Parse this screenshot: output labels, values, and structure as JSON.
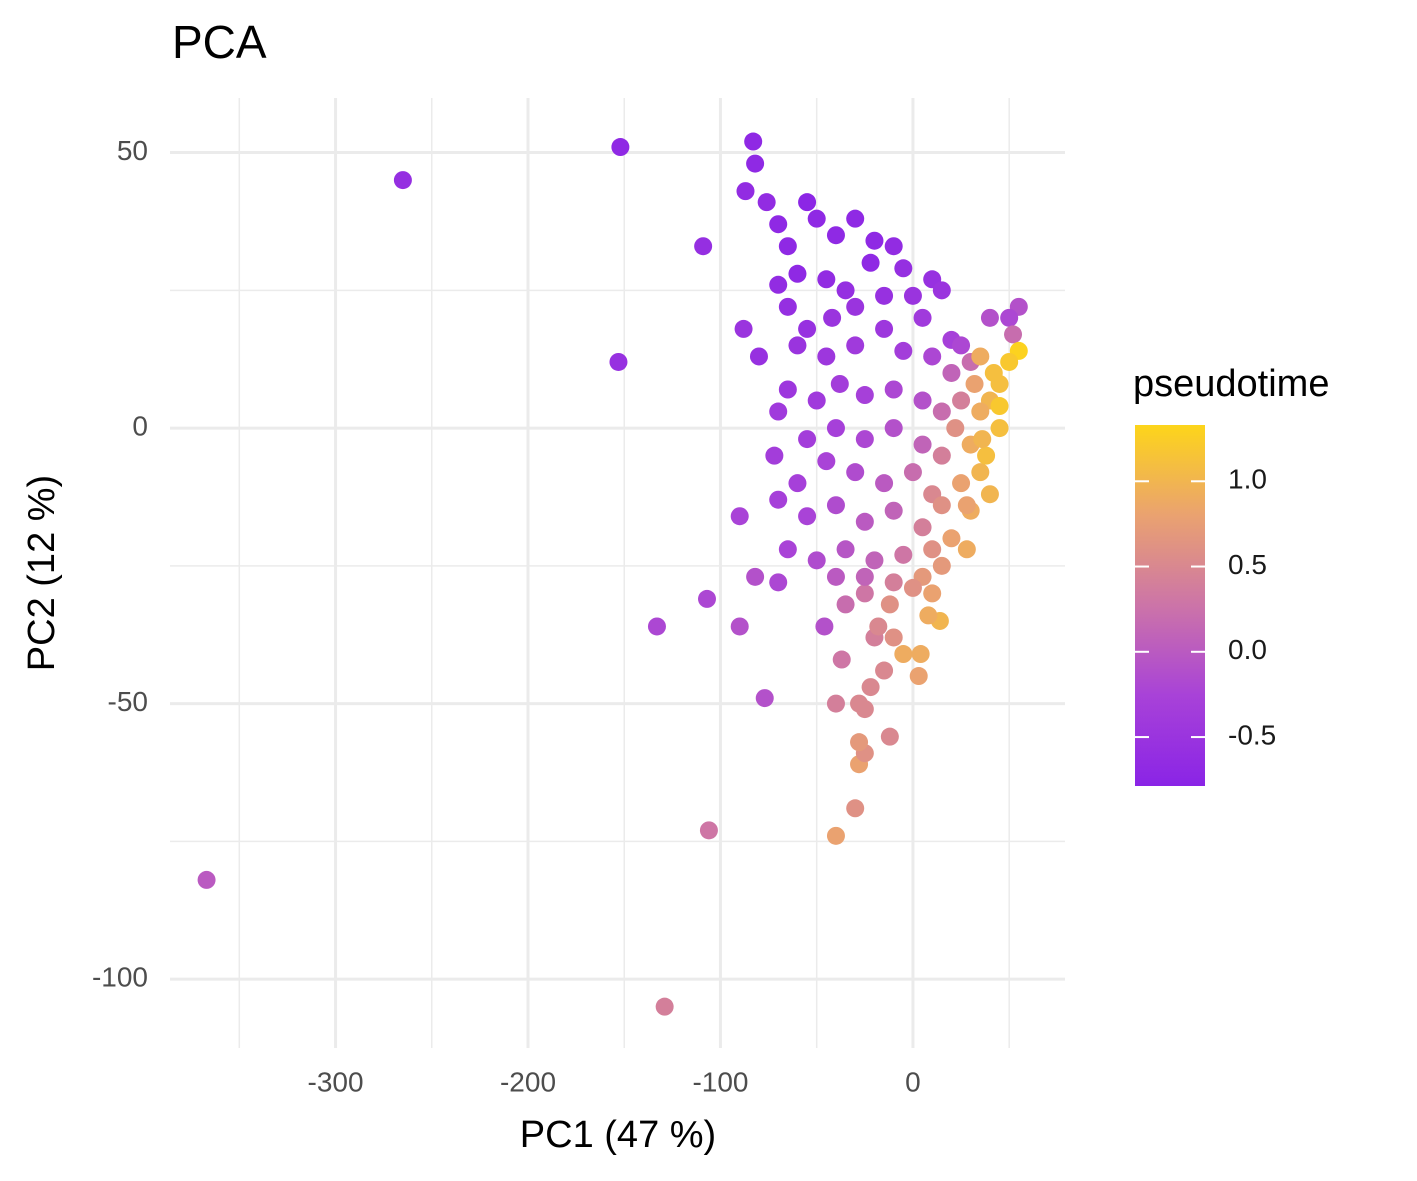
{
  "chart_data": {
    "type": "scatter",
    "title": "PCA",
    "x_label": "PC1 (47 %)",
    "y_label": "PC2 (12 %)",
    "color_label": "pseudotime",
    "xlim": [
      -386,
      79
    ],
    "ylim": [
      -112.5,
      59.9
    ],
    "xticks": [
      -300,
      -200,
      -100,
      0
    ],
    "yticks": [
      -100,
      -50,
      0,
      50
    ],
    "grid": true,
    "clim": [
      -0.787,
      1.33
    ],
    "cticks": [
      -0.5,
      {
        "value": 0,
        "label": "0.0"
      },
      0.5,
      {
        "value": 1,
        "label": "1.0"
      }
    ],
    "colorscale": [
      "#8a24e6",
      "#a842d8",
      "#cc74a8",
      "#eaa270",
      "#fdd51a"
    ],
    "x": [
      -367,
      -265,
      -152,
      -153,
      -109,
      -83,
      -82,
      -87,
      -76,
      -88,
      -80,
      -133,
      -107,
      -90,
      -90,
      -82,
      -77,
      -106,
      -129,
      -70,
      -46,
      -40,
      -30,
      -28,
      -25,
      -28,
      -12,
      -40,
      -28,
      -25,
      -37,
      -22,
      -15,
      3,
      4,
      -5,
      -20,
      -10,
      14,
      8,
      -35,
      -25,
      -12,
      -18,
      55,
      50,
      40,
      52,
      55,
      50,
      45,
      40,
      35,
      45,
      30,
      35,
      25,
      40,
      30,
      20,
      28,
      15,
      5,
      -70,
      -65,
      -55,
      -50,
      -40,
      -30,
      -20,
      -10,
      -60,
      -45,
      -35,
      -22,
      -5,
      10,
      15,
      -70,
      -65,
      -55,
      -42,
      -30,
      -15,
      0,
      5,
      20,
      25,
      -60,
      -45,
      -30,
      -15,
      -5,
      10,
      20,
      30,
      -65,
      -50,
      -38,
      -25,
      -10,
      5,
      15,
      25,
      -70,
      -55,
      -40,
      -25,
      -10,
      5,
      15,
      22,
      -72,
      -60,
      -45,
      -30,
      -15,
      0,
      10,
      -70,
      -55,
      -40,
      -25,
      -10,
      5,
      15,
      -65,
      -50,
      -35,
      -20,
      -5,
      10,
      -40,
      -25,
      -10,
      0,
      10,
      35,
      42,
      38,
      45,
      32,
      28,
      36
    ],
    "y": [
      -82,
      45,
      51,
      12,
      33,
      52,
      48,
      43,
      41,
      18,
      13,
      -36,
      -31,
      -36,
      -16,
      -27,
      -49,
      -73,
      -105,
      -28,
      -36,
      -74,
      -69,
      -61,
      -59,
      -57,
      -56,
      -50,
      -50,
      -51,
      -42,
      -47,
      -44,
      -45,
      -41,
      -41,
      -38,
      -38,
      -35,
      -34,
      -32,
      -30,
      -32,
      -36,
      22,
      20,
      20,
      17,
      14,
      12,
      8,
      5,
      3,
      0,
      -3,
      -8,
      -10,
      -12,
      -15,
      -20,
      -22,
      -25,
      -27,
      37,
      33,
      41,
      38,
      35,
      38,
      34,
      33,
      28,
      27,
      25,
      30,
      29,
      27,
      25,
      26,
      22,
      18,
      20,
      22,
      24,
      24,
      20,
      16,
      15,
      15,
      13,
      15,
      18,
      14,
      13,
      10,
      12,
      7,
      5,
      8,
      6,
      7,
      5,
      3,
      5,
      3,
      -2,
      0,
      -2,
      0,
      -3,
      -5,
      0,
      -5,
      -10,
      -6,
      -8,
      -10,
      -8,
      -12,
      -13,
      -16,
      -14,
      -17,
      -15,
      -18,
      -14,
      -22,
      -24,
      -22,
      -24,
      -23,
      -22,
      -27,
      -27,
      -28,
      -29,
      -30,
      13,
      10,
      -5,
      4,
      8,
      -14,
      -2
    ],
    "color_values": [
      0.0,
      -0.6,
      -0.7,
      -0.55,
      -0.6,
      -0.7,
      -0.7,
      -0.65,
      -0.65,
      -0.5,
      -0.55,
      -0.2,
      -0.2,
      -0.1,
      -0.25,
      -0.1,
      -0.1,
      0.3,
      0.4,
      -0.2,
      -0.1,
      0.8,
      0.6,
      0.8,
      0.6,
      0.7,
      0.5,
      0.4,
      0.5,
      0.5,
      0.3,
      0.5,
      0.5,
      0.8,
      0.9,
      0.9,
      0.4,
      0.6,
      1.0,
      0.9,
      0.2,
      0.3,
      0.6,
      0.5,
      -0.1,
      -0.2,
      -0.1,
      0.2,
      1.3,
      1.2,
      1.1,
      1.0,
      0.9,
      1.1,
      0.9,
      1.0,
      0.8,
      1.0,
      0.9,
      0.8,
      0.9,
      0.7,
      0.7,
      -0.7,
      -0.7,
      -0.75,
      -0.7,
      -0.7,
      -0.7,
      -0.7,
      -0.65,
      -0.7,
      -0.65,
      -0.6,
      -0.7,
      -0.6,
      -0.55,
      -0.5,
      -0.65,
      -0.6,
      -0.55,
      -0.5,
      -0.5,
      -0.55,
      -0.5,
      -0.4,
      -0.3,
      -0.2,
      -0.5,
      -0.45,
      -0.4,
      -0.45,
      -0.35,
      -0.2,
      0.1,
      0.2,
      -0.45,
      -0.4,
      -0.35,
      -0.3,
      -0.2,
      -0.1,
      0.2,
      0.4,
      -0.4,
      -0.35,
      -0.3,
      -0.2,
      -0.1,
      0.1,
      0.4,
      0.6,
      -0.35,
      -0.3,
      -0.25,
      -0.15,
      0.0,
      0.2,
      0.5,
      -0.3,
      -0.25,
      -0.15,
      0.0,
      0.1,
      0.4,
      0.6,
      -0.25,
      -0.15,
      -0.05,
      0.1,
      0.3,
      0.6,
      0.0,
      0.1,
      0.4,
      0.6,
      0.8,
      0.9,
      1.1,
      1.1,
      1.2,
      0.8,
      0.8,
      1.0
    ]
  }
}
